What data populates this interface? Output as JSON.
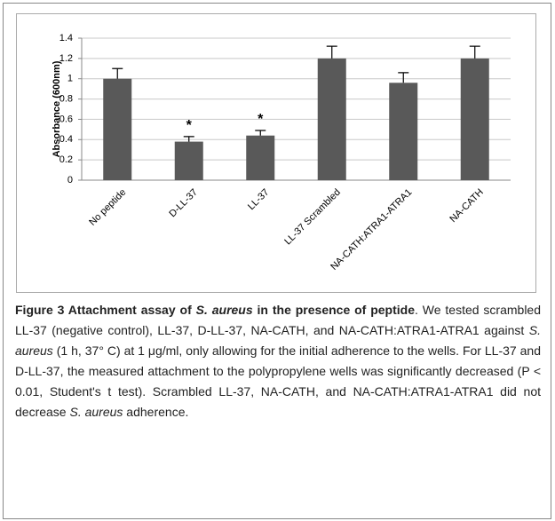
{
  "chart_data": {
    "type": "bar",
    "y_label": "Absorbance (600nm)",
    "categories": [
      "No peptide",
      "D-LL-37",
      "LL-37",
      "LL-37 Scrambled",
      "NA-CATH:ATRA1-ATRA1",
      "NA-CATH"
    ],
    "values": [
      1.0,
      0.38,
      0.44,
      1.2,
      0.96,
      1.2
    ],
    "errors": [
      0.1,
      0.05,
      0.05,
      0.12,
      0.1,
      0.12
    ],
    "color": "#595959",
    "ylim": [
      0,
      1.4
    ],
    "yticks": [
      0,
      0.2,
      0.4,
      0.6,
      0.8,
      1,
      1.2,
      1.4
    ],
    "grid": true,
    "annotations": [
      {
        "text": "*",
        "category": "D-LL-37"
      },
      {
        "text": "*",
        "category": "LL-37"
      }
    ]
  },
  "caption": [
    {
      "text": "Figure 3 Attachment assay of ",
      "bold": true,
      "italic": false
    },
    {
      "text": "S. aureus",
      "bold": true,
      "italic": true
    },
    {
      "text": " in the presence of peptide",
      "bold": true,
      "italic": false
    },
    {
      "text": ". We tested scrambled LL-37 (negative control), LL-37, D-LL-37, NA-CATH, and NA-CATH:ATRA1-ATRA1 against ",
      "bold": false,
      "italic": false
    },
    {
      "text": "S. aureus",
      "bold": false,
      "italic": true
    },
    {
      "text": " (1 h, 37° C) at 1 μg/ml, only allowing for the initial adherence to the wells. For LL-37 and D-LL-37, the measured attachment to the polypropylene wells was significantly decreased (P < 0.01, Student's t test). Scrambled LL-37, NA-CATH, and NA-CATH:ATRA1-ATRA1 did not decrease ",
      "bold": false,
      "italic": false
    },
    {
      "text": "S. aureus",
      "bold": false,
      "italic": true
    },
    {
      "text": " adherence.",
      "bold": false,
      "italic": false
    }
  ]
}
